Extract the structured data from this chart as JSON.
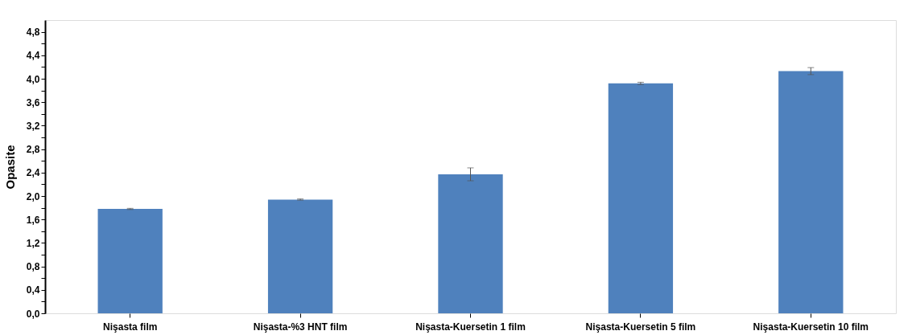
{
  "chart_data": {
    "type": "bar",
    "ylabel": "Opasite",
    "categories": [
      "Nişasta film",
      "Nişasta-%3 HNT film",
      "Nişasta-Kuersetin 1 film",
      "Nişasta-Kuersetin 5 film",
      "Nişasta-Kuersetin 10 film"
    ],
    "values": [
      1.78,
      1.94,
      2.37,
      3.92,
      4.13
    ],
    "errors": [
      0.01,
      0.01,
      0.11,
      0.02,
      0.06
    ],
    "color": "#4f81bd",
    "ylim": [
      0,
      5.0
    ],
    "yticks": [
      {
        "value": 0,
        "label": "0,0"
      },
      {
        "value": 0.2,
        "label": null
      },
      {
        "value": 0.4,
        "label": "0,4"
      },
      {
        "value": 0.6,
        "label": null
      },
      {
        "value": 0.8,
        "label": "0,8"
      },
      {
        "value": 1.0,
        "label": null
      },
      {
        "value": 1.2,
        "label": "1,2"
      },
      {
        "value": 1.4,
        "label": null
      },
      {
        "value": 1.6,
        "label": "1,6"
      },
      {
        "value": 1.8,
        "label": null
      },
      {
        "value": 2.0,
        "label": "2,0"
      },
      {
        "value": 2.2,
        "label": null
      },
      {
        "value": 2.4,
        "label": "2,4"
      },
      {
        "value": 2.6,
        "label": null
      },
      {
        "value": 2.8,
        "label": "2,8"
      },
      {
        "value": 3.0,
        "label": null
      },
      {
        "value": 3.2,
        "label": "3,2"
      },
      {
        "value": 3.4,
        "label": null
      },
      {
        "value": 3.6,
        "label": "3,6"
      },
      {
        "value": 3.8,
        "label": null
      },
      {
        "value": 4.0,
        "label": "4,0"
      },
      {
        "value": 4.2,
        "label": null
      },
      {
        "value": 4.4,
        "label": "4,4"
      },
      {
        "value": 4.6,
        "label": null
      },
      {
        "value": 4.8,
        "label": "4,8"
      }
    ],
    "grid": false
  }
}
